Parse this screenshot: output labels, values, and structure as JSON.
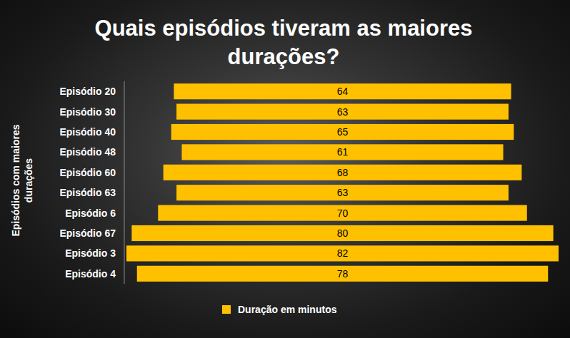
{
  "chart_data": {
    "type": "funnel",
    "title": "Quais episódios tiveram as maiores durações?",
    "y_label": "Episódios com maiores durações",
    "categories": [
      "Episódio 20",
      "Episódio 30",
      "Episódio 40",
      "Episódio 48",
      "Episódio 60",
      "Episódio 63",
      "Episódio 6",
      "Episódio 67",
      "Episódio 3",
      "Episódio 4"
    ],
    "series": [
      {
        "name": "Duração em minutos",
        "color": "#ffc000",
        "values": [
          64,
          63,
          65,
          61,
          68,
          63,
          70,
          80,
          82,
          78
        ]
      }
    ],
    "orientation": "horizontal",
    "data_labels": true,
    "tick_labels": "y",
    "legend": "bottom"
  }
}
